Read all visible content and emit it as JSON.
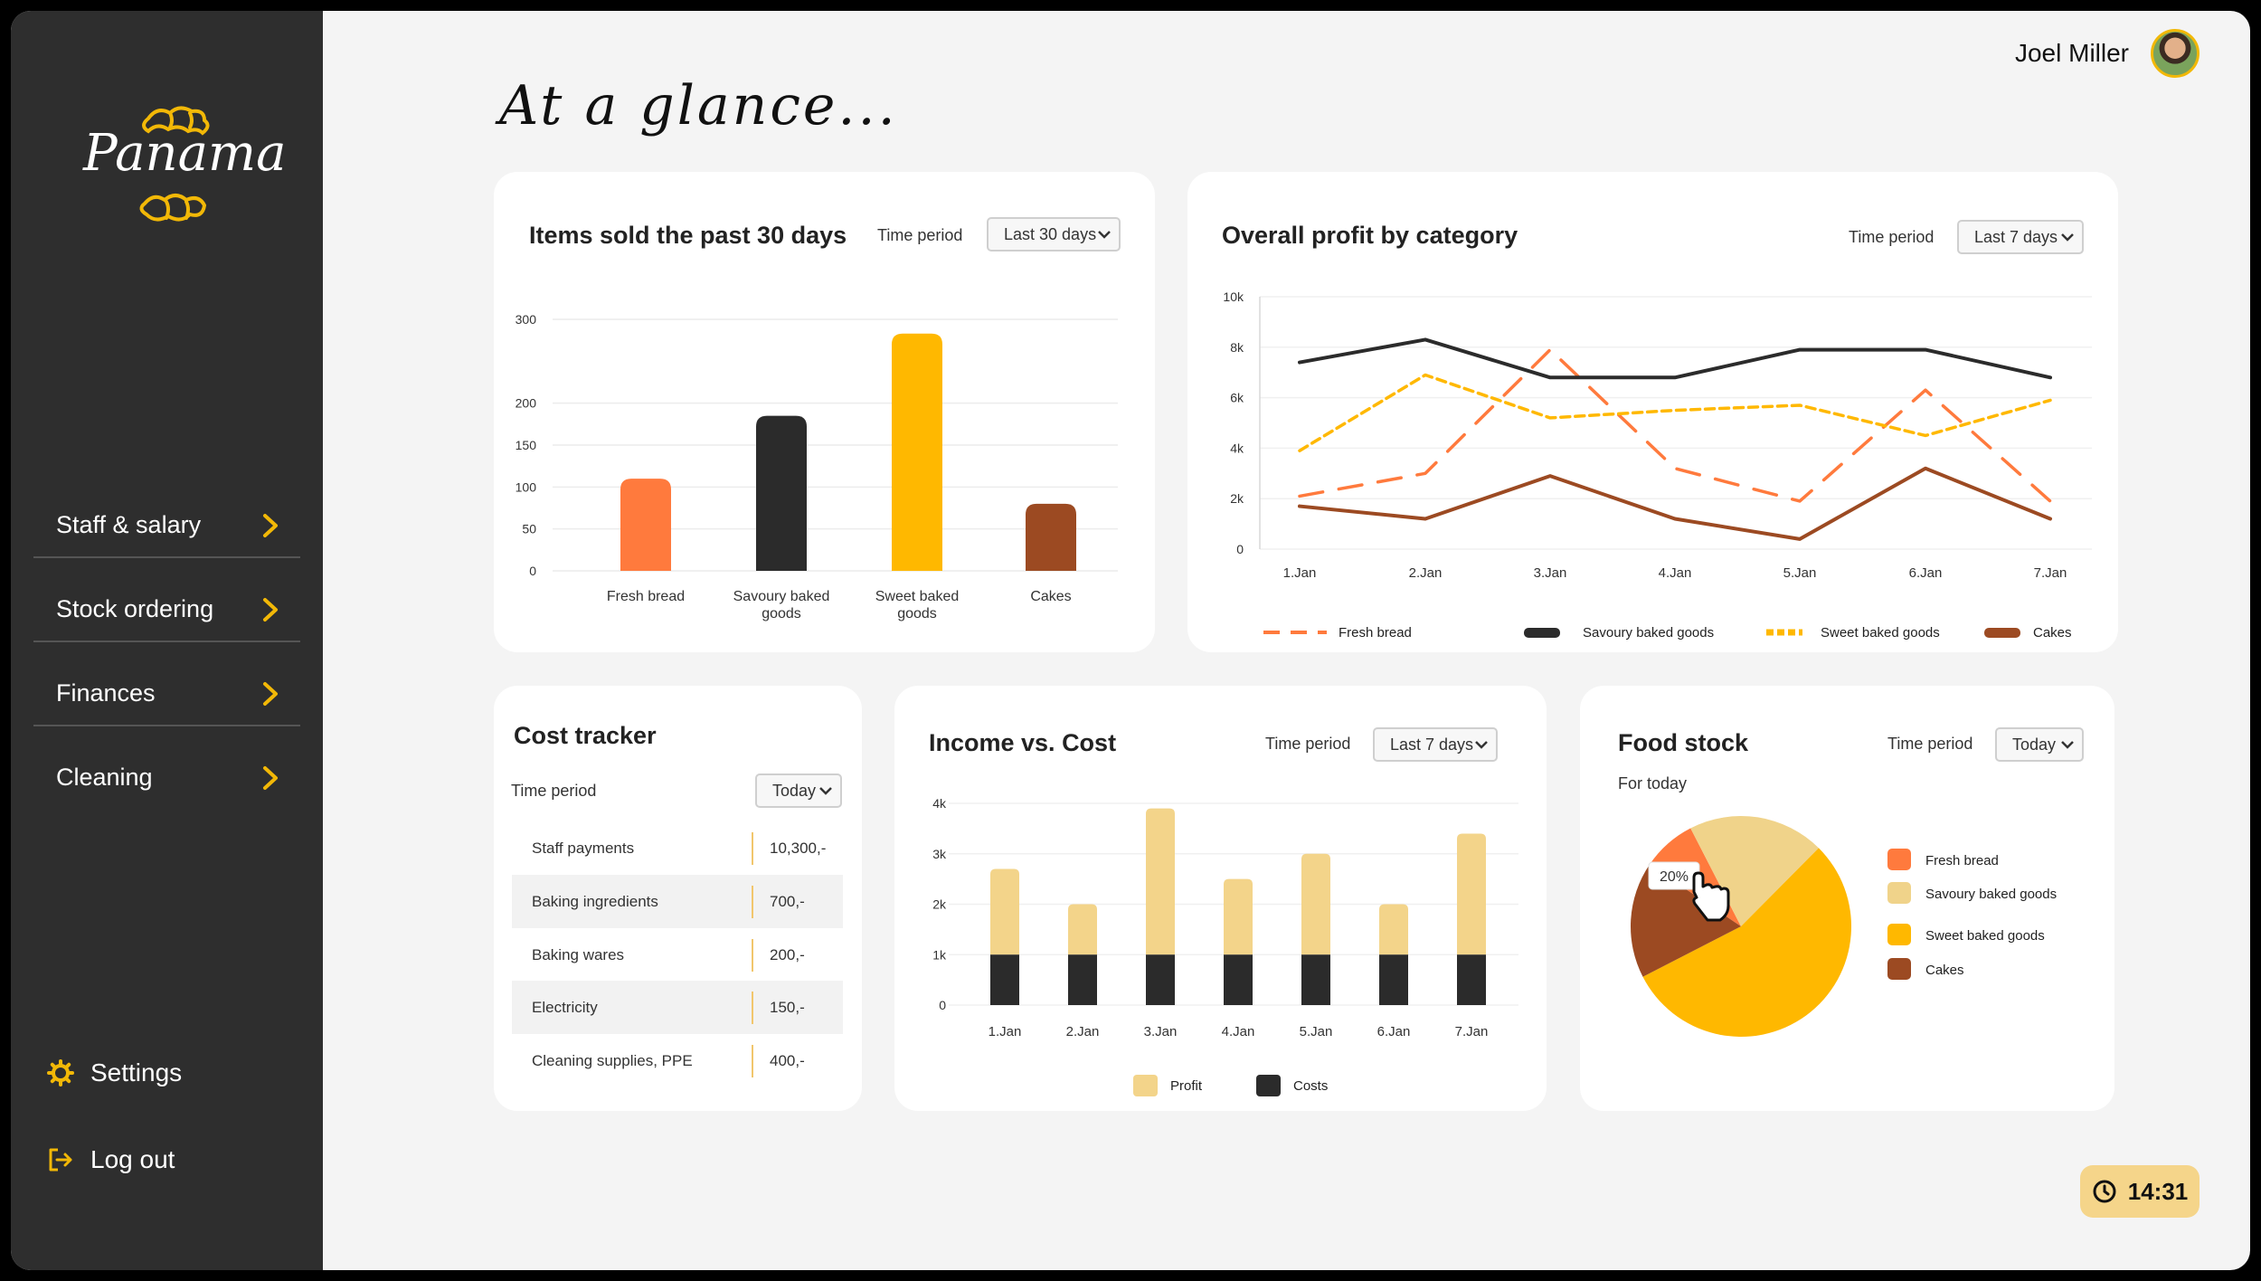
{
  "brand": {
    "name": "Panama",
    "accent": "#f2b807"
  },
  "sidebar": {
    "items": [
      {
        "label": "Staff & salary"
      },
      {
        "label": "Stock ordering"
      },
      {
        "label": "Finances"
      },
      {
        "label": "Cleaning"
      }
    ],
    "settings_label": "Settings",
    "logout_label": "Log out"
  },
  "header": {
    "user_name": "Joel Miller",
    "title": "At a glance..."
  },
  "clock": {
    "time": "14:31"
  },
  "colors": {
    "fresh_bread": "#ff7a3d",
    "savoury": "#2b2b2b",
    "sweet": "#ffb800",
    "cakes": "#9c4a22",
    "profit": "#f3d48a",
    "savoury_pie": "#f0d38a"
  },
  "items_sold": {
    "title": "Items sold the past 30 days",
    "time_period_label": "Time period",
    "time_period_value": "Last 30 days"
  },
  "profit_by_category": {
    "title": "Overall profit by category",
    "time_period_label": "Time period",
    "time_period_value": "Last 7 days"
  },
  "cost_tracker": {
    "title": "Cost tracker",
    "time_period_label": "Time period",
    "time_period_value": "Today",
    "rows": [
      {
        "name": "Staff payments",
        "value": "10,300,-"
      },
      {
        "name": "Baking ingredients",
        "value": "700,-"
      },
      {
        "name": "Baking wares",
        "value": "200,-"
      },
      {
        "name": "Electricity",
        "value": "150,-"
      },
      {
        "name": "Cleaning supplies, PPE",
        "value": "400,-"
      }
    ]
  },
  "income_cost": {
    "title": "Income vs. Cost",
    "time_period_label": "Time period",
    "time_period_value": "Last 7 days"
  },
  "food_stock": {
    "title": "Food stock",
    "subtitle": "For today",
    "time_period_label": "Time period",
    "time_period_value": "Today",
    "tooltip": "20%"
  },
  "chart_data": [
    {
      "type": "bar",
      "categories": [
        "Fresh bread",
        "Savoury baked goods",
        "Sweet baked goods",
        "Cakes"
      ],
      "values": [
        110,
        185,
        283,
        80
      ],
      "ylim": [
        0,
        300
      ],
      "yticks": [
        0,
        50,
        100,
        150,
        200,
        300
      ],
      "grid": true
    },
    {
      "type": "line",
      "x": [
        "1.Jan",
        "2.Jan",
        "3.Jan",
        "4.Jan",
        "5.Jan",
        "6.Jan",
        "7.Jan"
      ],
      "yticks": [
        "0",
        "2k",
        "4k",
        "6k",
        "8k",
        "10k"
      ],
      "ylim": [
        0,
        10000
      ],
      "series": [
        {
          "name": "Fresh bread",
          "values": [
            2100,
            3000,
            7900,
            3200,
            1900,
            6300,
            1900
          ]
        },
        {
          "name": "Savoury baked goods",
          "values": [
            7400,
            8300,
            6800,
            6800,
            7900,
            7900,
            6800
          ]
        },
        {
          "name": "Sweet baked goods",
          "values": [
            3900,
            6900,
            5200,
            5500,
            5700,
            4500,
            5900
          ]
        },
        {
          "name": "Cakes",
          "values": [
            1700,
            1200,
            2900,
            1200,
            400,
            3200,
            1200
          ]
        }
      ],
      "legend_position": "bottom",
      "grid": true
    },
    {
      "type": "bar",
      "x": [
        "1.Jan",
        "2.Jan",
        "3.Jan",
        "4.Jan",
        "5.Jan",
        "6.Jan",
        "7.Jan"
      ],
      "yticks": [
        "0",
        "1k",
        "2k",
        "3k",
        "4k"
      ],
      "ylim": [
        0,
        4000
      ],
      "stacked": true,
      "series": [
        {
          "name": "Costs",
          "values": [
            1000,
            1000,
            1000,
            1000,
            1000,
            1000,
            1000
          ]
        },
        {
          "name": "Profit",
          "values": [
            1700,
            1000,
            2900,
            1500,
            2000,
            1000,
            2400
          ]
        }
      ],
      "legend_position": "bottom",
      "grid": true
    },
    {
      "type": "pie",
      "categories": [
        "Fresh bread",
        "Savoury baked goods",
        "Sweet baked goods",
        "Cakes"
      ],
      "values": [
        8,
        20,
        55,
        17
      ],
      "annotation": "20%",
      "legend_position": "right"
    }
  ]
}
